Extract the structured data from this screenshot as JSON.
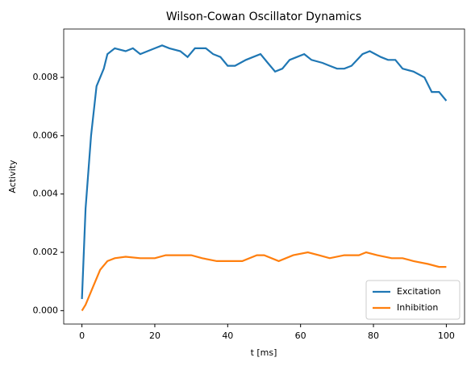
{
  "chart_data": {
    "type": "line",
    "title": "Wilson-Cowan Oscillator Dynamics",
    "xlabel": "t [ms]",
    "ylabel": "Activity",
    "series": [
      {
        "name": "Excitation",
        "color": "#1f77b4",
        "x": [
          0,
          1,
          2.5,
          4,
          6,
          7,
          9,
          12,
          14,
          16,
          18,
          20,
          22,
          24,
          27,
          29,
          31,
          34,
          36,
          38,
          40,
          42,
          45,
          47,
          49,
          51,
          53,
          55,
          57,
          59,
          61,
          63,
          66,
          68,
          70,
          72,
          74,
          77,
          79,
          82,
          84,
          86,
          88,
          91,
          94,
          96,
          98,
          100
        ],
        "values": [
          0.0004,
          0.0035,
          0.006,
          0.0077,
          0.0083,
          0.0088,
          0.009,
          0.0089,
          0.009,
          0.0088,
          0.0089,
          0.009,
          0.0091,
          0.009,
          0.0089,
          0.0087,
          0.009,
          0.009,
          0.0088,
          0.0087,
          0.0084,
          0.0084,
          0.0086,
          0.0087,
          0.0088,
          0.0085,
          0.0082,
          0.0083,
          0.0086,
          0.0087,
          0.0088,
          0.0086,
          0.0085,
          0.0084,
          0.0083,
          0.0083,
          0.0084,
          0.0088,
          0.0089,
          0.0087,
          0.0086,
          0.0086,
          0.0083,
          0.0082,
          0.008,
          0.0075,
          0.0075,
          0.0072
        ]
      },
      {
        "name": "Inhibition",
        "color": "#ff7f0e",
        "x": [
          0,
          1,
          3,
          5,
          7,
          9,
          12,
          16,
          20,
          23,
          27,
          30,
          33,
          37,
          40,
          44,
          48,
          50,
          54,
          58,
          62,
          65,
          68,
          72,
          76,
          78,
          81,
          85,
          88,
          91,
          95,
          98,
          100
        ],
        "values": [
          0,
          0.0002,
          0.0008,
          0.0014,
          0.0017,
          0.0018,
          0.00185,
          0.0018,
          0.0018,
          0.0019,
          0.0019,
          0.0019,
          0.0018,
          0.0017,
          0.0017,
          0.0017,
          0.0019,
          0.0019,
          0.0017,
          0.0019,
          0.002,
          0.0019,
          0.0018,
          0.0019,
          0.0019,
          0.002,
          0.0019,
          0.0018,
          0.0018,
          0.0017,
          0.0016,
          0.0015,
          0.0015
        ]
      }
    ],
    "xlim": [
      -5,
      105
    ],
    "xticks": [
      0,
      20,
      40,
      60,
      80,
      100
    ],
    "ylim": [
      -0.00046,
      0.00966
    ],
    "yticks": [
      {
        "value": 0,
        "label": "0.000"
      },
      {
        "value": 0.002,
        "label": "0.002"
      },
      {
        "value": 0.004,
        "label": "0.004"
      },
      {
        "value": 0.006,
        "label": "0.006"
      },
      {
        "value": 0.008,
        "label": "0.008"
      }
    ],
    "legend": "lower right"
  }
}
